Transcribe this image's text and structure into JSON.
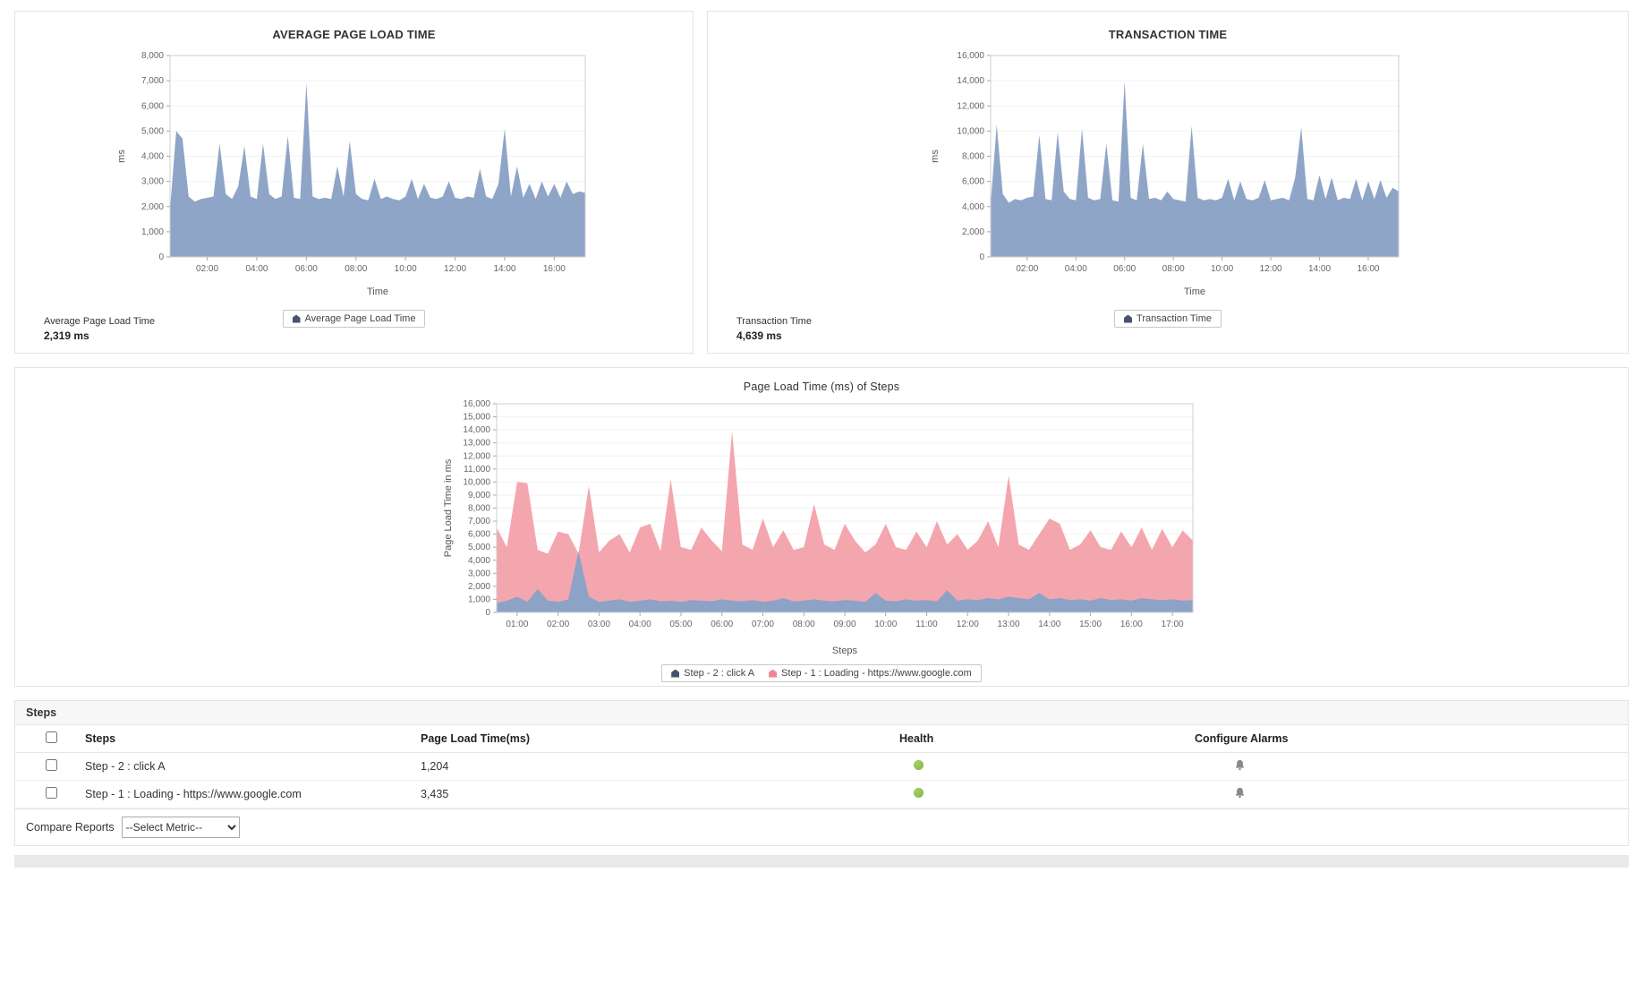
{
  "summaries": {
    "avg_page_load": {
      "label": "Average Page Load Time",
      "value": "2,319 ms"
    },
    "transaction_time": {
      "label": "Transaction Time",
      "value": "4,639 ms"
    }
  },
  "steps_table": {
    "section_title": "Steps",
    "columns": [
      "Steps",
      "Page Load Time(ms)",
      "Health",
      "Configure Alarms"
    ],
    "health_ok_color": "#7cb342",
    "rows": [
      {
        "name": "Step - 2 : click A",
        "load_time": "1,204",
        "health": "ok"
      },
      {
        "name": "Step - 1 : Loading - https://www.google.com",
        "load_time": "3,435",
        "health": "ok"
      }
    ]
  },
  "footer": {
    "compare_label": "Compare Reports",
    "select_value": "--Select Metric--"
  },
  "icons": {
    "configure_alarm": "bell-icon",
    "health": "status-dot-icon",
    "legend_marker": "series-marker-icon",
    "select_arrow": "chevron-down-icon"
  },
  "chart_data": [
    {
      "id": "avg-page-load",
      "type": "area",
      "title": "AVERAGE PAGE LOAD TIME",
      "xlabel": "Time",
      "ylabel": "ms",
      "ylim": [
        0,
        8000
      ],
      "ytick_step": 1000,
      "x_start": 0.5,
      "x_step": 0.25,
      "xticks_hours": [
        2,
        4,
        6,
        8,
        10,
        12,
        14,
        16
      ],
      "grid": "horizontal",
      "legend_position": "bottom",
      "series": [
        {
          "name": "Average Page Load Time",
          "fill": "#8fa5c7",
          "marker": "#47536e",
          "values": [
            1900,
            5000,
            4700,
            2400,
            2200,
            2300,
            2350,
            2400,
            4500,
            2500,
            2300,
            2800,
            4400,
            2400,
            2300,
            4500,
            2500,
            2300,
            2400,
            4800,
            2350,
            2300,
            6900,
            2400,
            2300,
            2350,
            2300,
            3600,
            2400,
            4600,
            2500,
            2300,
            2250,
            3100,
            2300,
            2400,
            2300,
            2250,
            2400,
            3100,
            2300,
            2900,
            2350,
            2300,
            2400,
            3000,
            2350,
            2300,
            2400,
            2350,
            3500,
            2400,
            2300,
            2900,
            5100,
            2400,
            3600,
            2350,
            2900,
            2300,
            3000,
            2400,
            2900,
            2350,
            3000,
            2500,
            2600,
            2550
          ]
        }
      ]
    },
    {
      "id": "transaction-time",
      "type": "area",
      "title": "TRANSACTION TIME",
      "xlabel": "Time",
      "ylabel": "ms",
      "ylim": [
        0,
        16000
      ],
      "ytick_step": 2000,
      "x_start": 0.5,
      "x_step": 0.25,
      "xticks_hours": [
        2,
        4,
        6,
        8,
        10,
        12,
        14,
        16
      ],
      "grid": "horizontal",
      "legend_position": "bottom",
      "series": [
        {
          "name": "Transaction Time",
          "fill": "#8fa5c7",
          "marker": "#47536e",
          "values": [
            4200,
            10500,
            5000,
            4300,
            4600,
            4500,
            4700,
            4800,
            9700,
            4600,
            4500,
            9900,
            5200,
            4600,
            4500,
            10200,
            4700,
            4500,
            4600,
            9000,
            4500,
            4400,
            14000,
            4700,
            4500,
            9000,
            4600,
            4700,
            4500,
            5200,
            4600,
            4500,
            4400,
            10400,
            4700,
            4500,
            4600,
            4500,
            4700,
            6200,
            4500,
            6000,
            4600,
            4500,
            4700,
            6100,
            4500,
            4600,
            4700,
            4500,
            6300,
            10300,
            4600,
            4500,
            6500,
            4600,
            6300,
            4500,
            4700,
            4600,
            6200,
            4500,
            6000,
            4600,
            6100,
            4700,
            5500,
            5200
          ]
        }
      ]
    },
    {
      "id": "steps-page-load",
      "type": "area",
      "title": "Page Load Time (ms) of Steps",
      "xlabel": "Steps",
      "ylabel": "Page Load Time in ms",
      "ylim": [
        0,
        16000
      ],
      "ytick_step": 1000,
      "x_start": 0.5,
      "x_step": 0.25,
      "xticks_hours": [
        1,
        2,
        3,
        4,
        5,
        6,
        7,
        8,
        9,
        10,
        11,
        12,
        13,
        14,
        15,
        16,
        17
      ],
      "grid": "horizontal",
      "legend_position": "bottom",
      "series": [
        {
          "name": "Step - 2 : click A",
          "fill": "#8ca3c6",
          "marker": "#47536e",
          "values": [
            700,
            900,
            1200,
            800,
            1800,
            900,
            800,
            1000,
            4700,
            1200,
            800,
            900,
            1000,
            800,
            900,
            1000,
            850,
            900,
            800,
            950,
            900,
            850,
            1000,
            900,
            850,
            950,
            800,
            900,
            1100,
            850,
            900,
            1000,
            900,
            850,
            950,
            900,
            800,
            1500,
            900,
            850,
            1000,
            900,
            950,
            850,
            1700,
            900,
            1000,
            950,
            1100,
            1000,
            1200,
            1100,
            1000,
            1500,
            1000,
            1100,
            950,
            1000,
            900,
            1100,
            950,
            1000,
            900,
            1100,
            1000,
            950,
            1000,
            900,
            950
          ]
        },
        {
          "name": "Step - 1 : Loading - https://www.google.com",
          "fill": "#f4a6ae",
          "marker": "#ee8795",
          "values": [
            6500,
            5000,
            10000,
            9900,
            4800,
            4500,
            6200,
            6000,
            4500,
            9700,
            4600,
            5500,
            6000,
            4600,
            6500,
            6800,
            4700,
            10200,
            5000,
            4800,
            6500,
            5500,
            4700,
            13900,
            5200,
            4800,
            7200,
            5000,
            6300,
            4800,
            5000,
            8300,
            5200,
            4800,
            6800,
            5500,
            4600,
            5200,
            6800,
            5000,
            4800,
            6200,
            5000,
            7000,
            5200,
            6000,
            4800,
            5500,
            7000,
            5000,
            10500,
            5200,
            4800,
            6000,
            7200,
            6800,
            4800,
            5200,
            6300,
            5000,
            4800,
            6200,
            5000,
            6500,
            4800,
            6400,
            5000,
            6300,
            5500
          ]
        }
      ]
    }
  ]
}
